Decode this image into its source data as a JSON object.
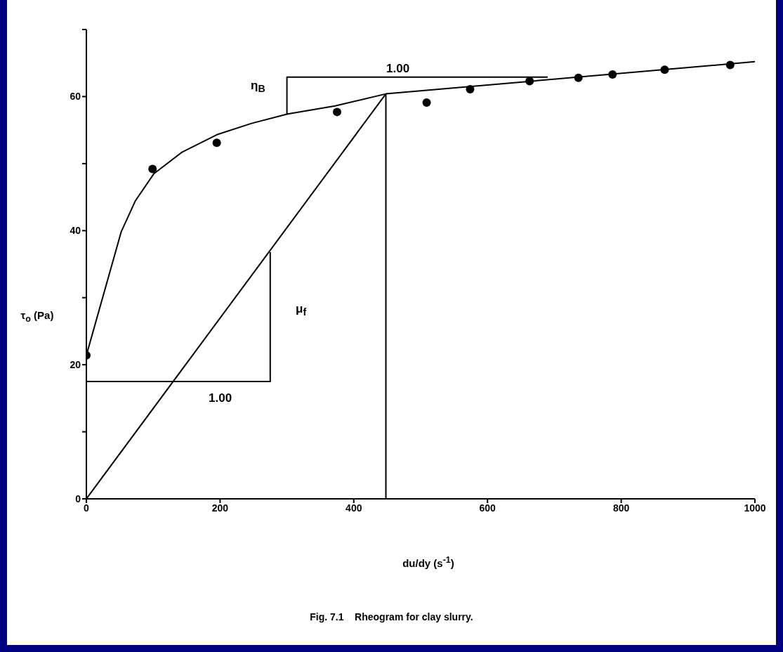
{
  "chart_data": {
    "type": "line",
    "xlabel": "du/dy  (s$^{-1}$)",
    "ylabel": "τ$_{o}$ (Pa)",
    "xlim": [
      0,
      1000
    ],
    "xticks": [
      0,
      200,
      400,
      600,
      800,
      1000
    ],
    "ylim": [
      0,
      70
    ],
    "yticks": [
      0,
      {
        "value": 10,
        "label": null
      },
      20,
      {
        "value": 30,
        "label": null
      },
      40,
      {
        "value": 50,
        "label": null
      },
      60,
      {
        "value": 70,
        "label": null
      }
    ],
    "series": [
      {
        "type": "scatter",
        "marker": "circle",
        "color": "#000000",
        "x": [
          0,
          99,
          195,
          375,
          509,
          574,
          663,
          736,
          787,
          865,
          963
        ],
        "values": [
          21.4,
          49.2,
          53.1,
          57.7,
          59.1,
          61.1,
          62.3,
          62.8,
          63.3,
          64.0,
          64.7
        ]
      },
      {
        "color": "#000000",
        "x": [
          0,
          52,
          73,
          101,
          143,
          195,
          247,
          301,
          372,
          448,
          1000
        ],
        "values": [
          21.4,
          39.8,
          44.4,
          48.5,
          51.7,
          54.3,
          56.0,
          57.4,
          58.6,
          60.4,
          65.2
        ]
      },
      {
        "color": "#000000",
        "x": [
          0,
          448
        ],
        "values": [
          0,
          60.4
        ]
      },
      {
        "color": "#000000",
        "x": [
          448,
          448
        ],
        "values": [
          0,
          60.4
        ]
      },
      {
        "color": "#000000",
        "x": [
          0,
          275,
          275
        ],
        "values": [
          17.5,
          17.5,
          36.8
        ]
      },
      {
        "color": "#000000",
        "x": [
          300,
          300,
          690
        ],
        "values": [
          57.4,
          62.9,
          62.9
        ]
      }
    ],
    "annotations": [
      "η$_{B}$",
      "1.00",
      "μ$_{f}$",
      "1.00",
      "Fig. 7.1    Rheogram for clay slurry."
    ]
  }
}
